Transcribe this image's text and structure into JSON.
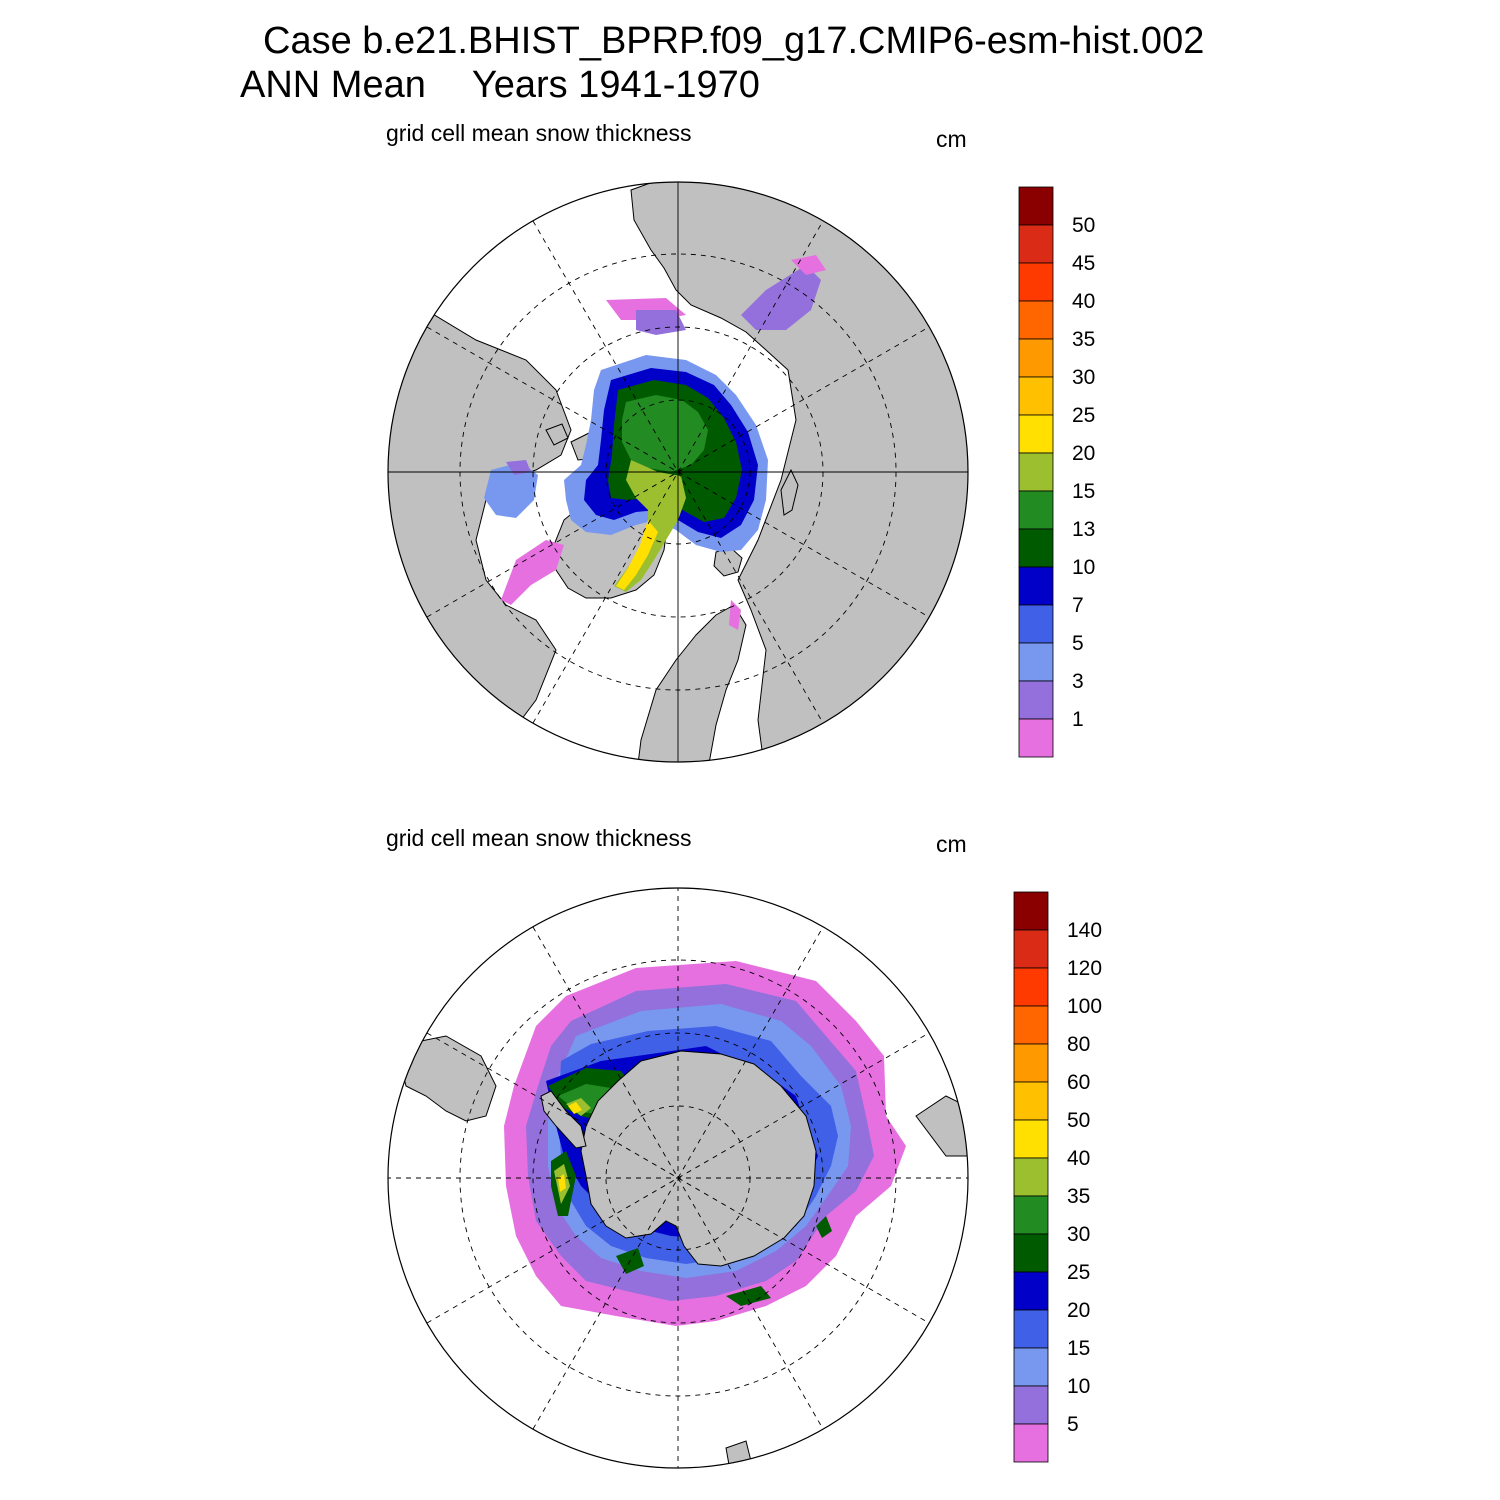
{
  "header": {
    "case_line": "Case b.e21.BHIST_BPRP.f09_g17.CMIP6-esm-hist.002",
    "season": "ANN Mean",
    "years": "Years 1941-1970"
  },
  "panels": [
    {
      "id": "nh",
      "title": "grid cell mean snow thickness",
      "units": "cm",
      "hemisphere": "north",
      "colorbar": {
        "labels": [
          "50",
          "45",
          "40",
          "35",
          "30",
          "25",
          "20",
          "15",
          "13",
          "10",
          "7",
          "5",
          "3",
          "1"
        ],
        "colors": [
          "#8a0000",
          "#d92b16",
          "#ff3a00",
          "#ff6600",
          "#ff9900",
          "#ffc000",
          "#ffe000",
          "#9cbf30",
          "#228b22",
          "#005a00",
          "#0000c8",
          "#4060e8",
          "#7898f0",
          "#9370db",
          "#e670e0"
        ]
      }
    },
    {
      "id": "sh",
      "title": "grid cell mean snow thickness",
      "units": "cm",
      "hemisphere": "south",
      "colorbar": {
        "labels": [
          "140",
          "120",
          "100",
          "80",
          "60",
          "50",
          "40",
          "35",
          "30",
          "25",
          "20",
          "15",
          "10",
          "5"
        ],
        "colors": [
          "#8a0000",
          "#d92b16",
          "#ff3a00",
          "#ff6600",
          "#ff9900",
          "#ffc000",
          "#ffe000",
          "#9cbf30",
          "#228b22",
          "#005a00",
          "#0000c8",
          "#4060e8",
          "#7898f0",
          "#9370db",
          "#e670e0"
        ]
      }
    }
  ],
  "colors": {
    "land": "#c0c0c0",
    "ocean": "#ffffff"
  }
}
